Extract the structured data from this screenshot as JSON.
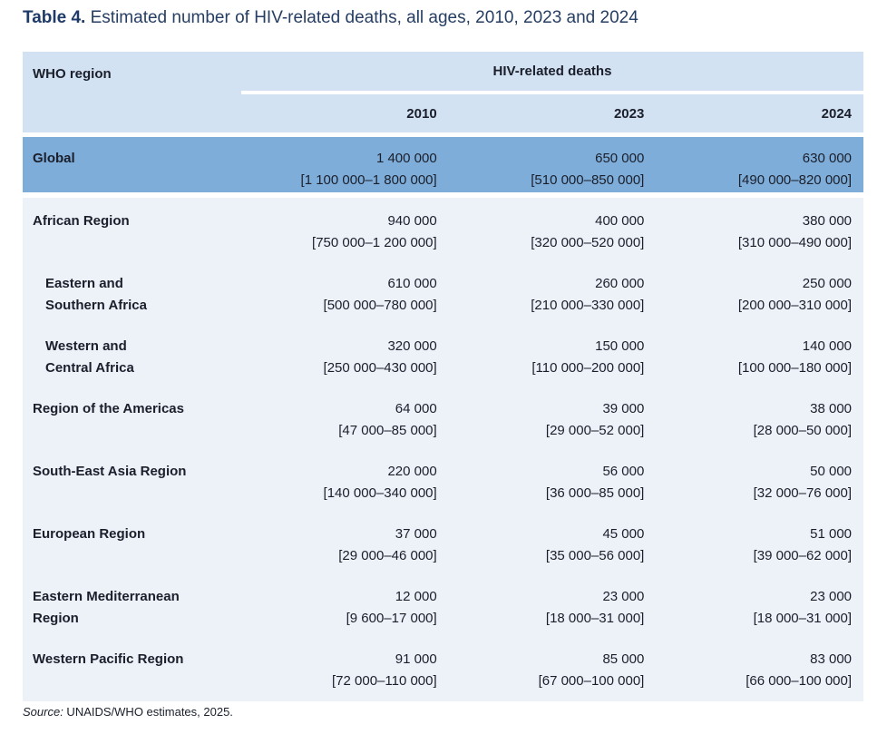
{
  "title": {
    "label": "Table 4.",
    "text": " Estimated number of HIV-related deaths, all ages, 2010, 2023 and 2024"
  },
  "table": {
    "region_header": "WHO region",
    "group_header": "HIV-related deaths",
    "years": [
      "2010",
      "2023",
      "2024"
    ],
    "rows": [
      {
        "region": "Global",
        "values": [
          "1 400 000",
          "650 000",
          "630 000"
        ],
        "ranges": [
          "[1 100 000–1 800 000]",
          "[510 000–850 000]",
          "[490 000–820 000]"
        ]
      },
      {
        "region": "African Region",
        "values": [
          "940 000",
          "400 000",
          "380 000"
        ],
        "ranges": [
          "[750 000–1 200 000]",
          "[320 000–520 000]",
          "[310 000–490 000]"
        ]
      },
      {
        "region": "Eastern and\nSouthern Africa",
        "values": [
          "610 000",
          "260 000",
          "250 000"
        ],
        "ranges": [
          "[500 000–780 000]",
          "[210 000–330 000]",
          "[200 000–310 000]"
        ]
      },
      {
        "region": "Western and\nCentral Africa",
        "values": [
          "320 000",
          "150 000",
          "140 000"
        ],
        "ranges": [
          "[250 000–430 000]",
          "[110 000–200 000]",
          "[100 000–180 000]"
        ]
      },
      {
        "region": "Region of the Americas",
        "values": [
          "64 000",
          "39 000",
          "38 000"
        ],
        "ranges": [
          "[47 000–85 000]",
          "[29 000–52 000]",
          "[28 000–50 000]"
        ]
      },
      {
        "region": "South-East Asia Region",
        "values": [
          "220 000",
          "56 000",
          "50 000"
        ],
        "ranges": [
          "[140 000–340 000]",
          "[36 000–85 000]",
          "[32 000–76 000]"
        ]
      },
      {
        "region": "European Region",
        "values": [
          "37 000",
          "45 000",
          "51 000"
        ],
        "ranges": [
          "[29 000–46 000]",
          "[35 000–56 000]",
          "[39 000–62 000]"
        ]
      },
      {
        "region": "Eastern Mediterranean\nRegion",
        "values": [
          "12 000",
          "23 000",
          "23 000"
        ],
        "ranges": [
          "[9 600–17 000]",
          "[18 000–31 000]",
          "[18 000–31 000]"
        ]
      },
      {
        "region": "Western Pacific Region",
        "values": [
          "91 000",
          "85 000",
          "83 000"
        ],
        "ranges": [
          "[72 000–110 000]",
          "[67 000–100 000]",
          "[66 000–100 000]"
        ]
      }
    ]
  },
  "source": {
    "label": "Source:",
    "text": " UNAIDS/WHO estimates, 2025."
  },
  "colors": {
    "header_bg": "#d3e2f2",
    "global_row_bg": "#7fadd9",
    "body_bg": "#edf2f9",
    "title_navy": "#263e63"
  }
}
